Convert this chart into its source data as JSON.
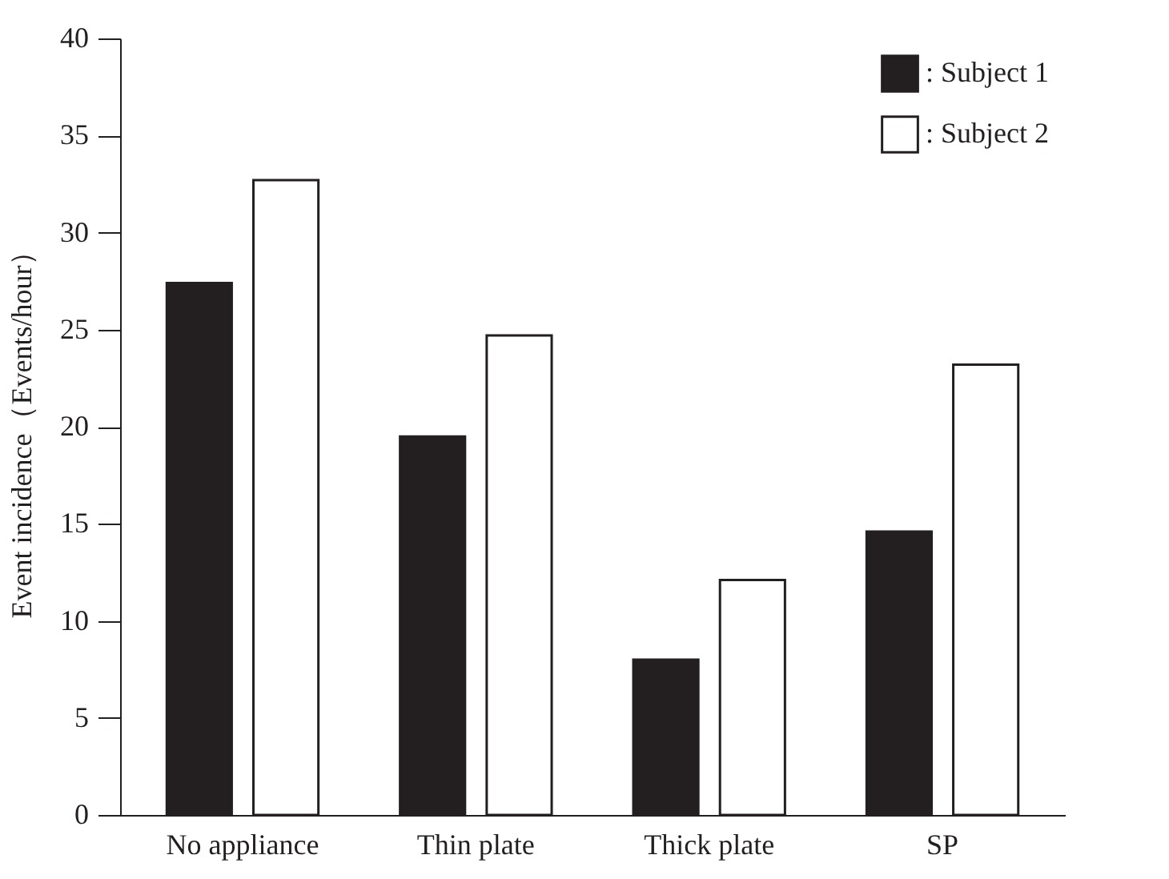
{
  "chart_data": {
    "type": "bar",
    "ylabel": "Event incidence（Events/hour）",
    "categories": [
      "No appliance",
      "Thin plate",
      "Thick plate",
      "SP"
    ],
    "series": [
      {
        "name": ": Subject 1",
        "color": "#231f20",
        "values": [
          27.4,
          19.5,
          8.0,
          14.6
        ]
      },
      {
        "name": ": Subject 2",
        "color": "#ffffff",
        "values": [
          32.7,
          24.7,
          12.1,
          23.2
        ]
      }
    ],
    "ylim": [
      0,
      40
    ],
    "yticks": [
      0,
      5,
      10,
      15,
      20,
      25,
      30,
      35,
      40
    ],
    "grid": false,
    "legend": "top right"
  }
}
